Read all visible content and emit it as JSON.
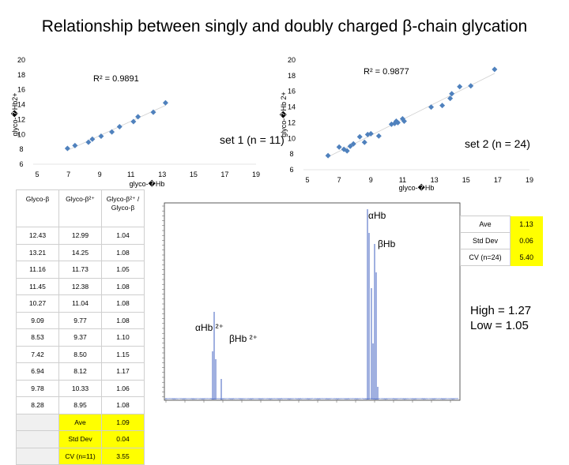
{
  "title": "Relationship between singly and doubly charged β-chain glycation",
  "chart_data": [
    {
      "type": "scatter",
      "name_label": "set 1 (n = 11)",
      "r2": "R² = 0.9891",
      "xlabel": "glyco-�Hb",
      "ylabel": "glyco-�Hb2+",
      "xlim": [
        5,
        19
      ],
      "ylim": [
        6,
        20
      ],
      "xticks": [
        "5",
        "7",
        "9",
        "11",
        "13",
        "15",
        "17",
        "19"
      ],
      "yticks": [
        "6",
        "8",
        "10",
        "12",
        "14",
        "16",
        "18",
        "20"
      ],
      "points": [
        [
          6.94,
          8.12
        ],
        [
          7.42,
          8.5
        ],
        [
          8.28,
          8.95
        ],
        [
          8.53,
          9.37
        ],
        [
          9.09,
          9.77
        ],
        [
          9.78,
          10.33
        ],
        [
          10.27,
          11.04
        ],
        [
          11.16,
          11.73
        ],
        [
          11.45,
          12.38
        ],
        [
          12.43,
          12.99
        ],
        [
          13.21,
          14.25
        ]
      ],
      "color": "#4f81bd"
    },
    {
      "type": "scatter",
      "name_label": "set 2 (n = 24)",
      "r2": "R² = 0.9877",
      "xlabel": "glyco-�Hb",
      "ylabel": "glyco-�Hb 2+",
      "xlim": [
        5,
        19
      ],
      "ylim": [
        6,
        20
      ],
      "xticks": [
        "5",
        "7",
        "9",
        "11",
        "13",
        "15",
        "17",
        "19"
      ],
      "yticks": [
        "6",
        "8",
        "10",
        "12",
        "14",
        "16",
        "18",
        "20"
      ],
      "points": [
        [
          6.3,
          7.8
        ],
        [
          7.0,
          8.9
        ],
        [
          7.3,
          8.6
        ],
        [
          7.5,
          8.4
        ],
        [
          7.7,
          9.0
        ],
        [
          7.9,
          9.3
        ],
        [
          8.3,
          10.2
        ],
        [
          8.6,
          9.5
        ],
        [
          8.8,
          10.5
        ],
        [
          9.0,
          10.6
        ],
        [
          9.5,
          10.3
        ],
        [
          10.3,
          11.8
        ],
        [
          10.5,
          11.9
        ],
        [
          10.6,
          12.2
        ],
        [
          10.7,
          12.0
        ],
        [
          11.0,
          12.5
        ],
        [
          11.1,
          12.2
        ],
        [
          12.8,
          14.0
        ],
        [
          13.5,
          14.2
        ],
        [
          14.0,
          15.1
        ],
        [
          14.1,
          15.7
        ],
        [
          14.6,
          16.6
        ],
        [
          15.3,
          16.7
        ],
        [
          16.8,
          18.8
        ]
      ],
      "color": "#4f81bd"
    }
  ],
  "table": {
    "headers": [
      "Glyco-β",
      "Glyco-β²⁺",
      "Glyco-β²⁺ / Glyco-β"
    ],
    "rows": [
      [
        "12.43",
        "12.99",
        "1.04"
      ],
      [
        "13.21",
        "14.25",
        "1.08"
      ],
      [
        "11.16",
        "11.73",
        "1.05"
      ],
      [
        "11.45",
        "12.38",
        "1.08"
      ],
      [
        "10.27",
        "11.04",
        "1.08"
      ],
      [
        "9.09",
        "9.77",
        "1.08"
      ],
      [
        "8.53",
        "9.37",
        "1.10"
      ],
      [
        "7.42",
        "8.50",
        "1.15"
      ],
      [
        "6.94",
        "8.12",
        "1.17"
      ],
      [
        "9.78",
        "10.33",
        "1.06"
      ],
      [
        "8.28",
        "8.95",
        "1.08"
      ]
    ],
    "summary": [
      {
        "label": "Ave",
        "value": "1.09"
      },
      {
        "label": "Std Dev",
        "value": "0.04"
      },
      {
        "label": "CV (n=11)",
        "value": "3.55"
      }
    ]
  },
  "stats": [
    {
      "label": "Ave",
      "value": "1.13"
    },
    {
      "label": "Std Dev",
      "value": "0.06"
    },
    {
      "label": "CV (n=24)",
      "value": "5.40"
    }
  ],
  "high_low": {
    "high": "High = 1.27",
    "low": "Low =  1.05"
  },
  "spectrum": {
    "peak_labels": {
      "alpha": "αHb",
      "beta": "βHb",
      "alpha2": "αHb ²⁺",
      "beta2": "βHb ²⁺"
    }
  }
}
